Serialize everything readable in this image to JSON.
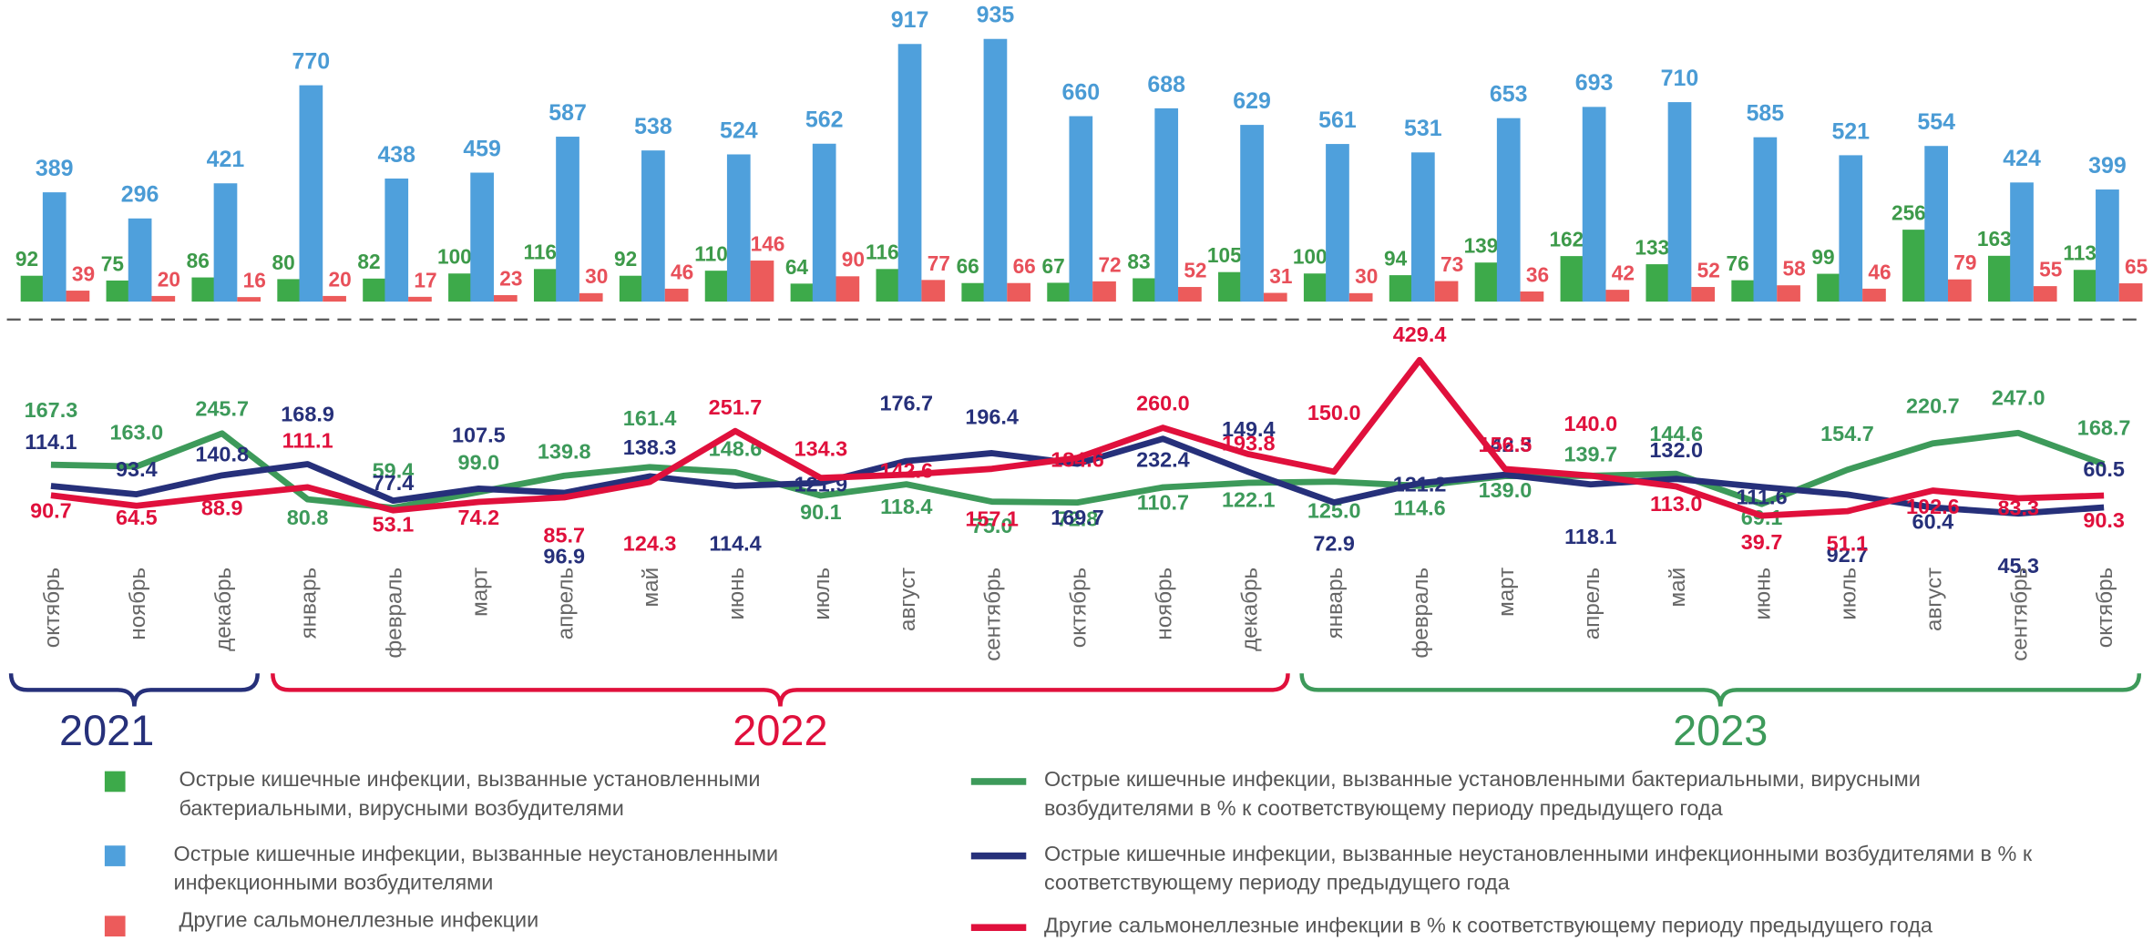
{
  "chart_data": {
    "type": "bar",
    "categories": [
      "октябрь",
      "ноябрь",
      "декабрь",
      "январь",
      "февраль",
      "март",
      "апрель",
      "май",
      "июнь",
      "июль",
      "август",
      "сентябрь",
      "октябрь",
      "ноябрь",
      "декабрь",
      "январь",
      "февраль",
      "март",
      "апрель",
      "май",
      "июнь",
      "июль",
      "август",
      "сентябрь",
      "октябрь"
    ],
    "year_labels": [
      "2021",
      "2022",
      "2023"
    ],
    "year_colors": [
      "#26307a",
      "#e0103c",
      "#3d9a5a"
    ],
    "series": [
      {
        "name": "Острые кишечные инфекции, вызванные установленными бактериальными, вирусными возбудителями",
        "kind": "bar",
        "color": "#3daa4a",
        "label_color": "#3d9a4a",
        "values": [
          92,
          75,
          86,
          80,
          82,
          100,
          116,
          92,
          110,
          64,
          116,
          66,
          67,
          83,
          105,
          100,
          94,
          139,
          162,
          133,
          76,
          99,
          256,
          163,
          113
        ]
      },
      {
        "name": "Острые кишечные инфекции, вызванные неустановленными инфекционными возбудителями",
        "kind": "bar",
        "color": "#4fa0dc",
        "label_color": "#4a9bd5",
        "values": [
          389,
          296,
          421,
          770,
          438,
          459,
          587,
          538,
          524,
          562,
          917,
          935,
          660,
          688,
          629,
          561,
          531,
          653,
          693,
          710,
          585,
          521,
          554,
          424,
          399
        ]
      },
      {
        "name": "Другие сальмонеллезные инфекции",
        "kind": "bar",
        "color": "#ec5b5b",
        "label_color": "#e8505a",
        "values": [
          39,
          20,
          16,
          20,
          17,
          23,
          30,
          46,
          146,
          90,
          77,
          66,
          72,
          52,
          31,
          30,
          73,
          36,
          42,
          52,
          58,
          46,
          79,
          55,
          65
        ]
      },
      {
        "name": "Острые кишечные инфекции, вызванные установленными бактериальными, вирусными возбудителями в % к соответствующему периоду предыдущего года",
        "kind": "line",
        "color": "#3d9a5a",
        "label_color": "#3d9a5a",
        "values": [
          167.3,
          163.0,
          245.7,
          80.8,
          59.4,
          99.0,
          139.8,
          161.4,
          148.6,
          90.1,
          118.4,
          75.0,
          72.8,
          110.7,
          122.1,
          125.0,
          114.6,
          139.0,
          139.7,
          144.6,
          69.1,
          154.7,
          220.7,
          247.0,
          168.7
        ],
        "value_labels": [
          "167.3",
          "163.0",
          "245.7",
          "80.8",
          "59.4",
          "99.0",
          "139.8",
          "161.4",
          "148.6",
          "90.1",
          "118.4",
          "75.0",
          "72.8",
          "110.7",
          "122.1",
          "125.0",
          "114.6",
          "139.0",
          "139.7",
          "144.6",
          "69.1",
          "154.7",
          "220.7",
          "247.0",
          "168.7"
        ]
      },
      {
        "name": "Острые кишечные инфекции, вызванные неустановленными инфекционными возбудителями в % к соответствующему периоду предыдущего года",
        "kind": "line",
        "color": "#26307a",
        "label_color": "#26307a",
        "values": [
          114.1,
          93.4,
          140.8,
          168.9,
          77.4,
          107.5,
          96.9,
          138.3,
          114.4,
          121.9,
          176.7,
          196.4,
          169.7,
          232.4,
          149.4,
          72.9,
          121.2,
          142.3,
          118.1,
          132.0,
          111.6,
          92.7,
          60.4,
          45.3,
          60.5
        ],
        "value_labels": [
          "114.1",
          "93.4",
          "140.8",
          "168.9",
          "77.4",
          "107.5",
          "96.9",
          "138.3",
          "114.4",
          "121.9",
          "176.7",
          "196.4",
          "169.7",
          "232.4",
          "149.4",
          "72.9",
          "121.2",
          "142.3",
          "118.1",
          "132.0",
          "111.6",
          "92.7",
          "60.4",
          "45.3",
          "60.5"
        ]
      },
      {
        "name": "Другие сальмонеллезные инфекции в % к соответствующему периоду предыдущего года",
        "kind": "line",
        "color": "#e0103c",
        "label_color": "#e0103c",
        "values": [
          90.7,
          64.5,
          88.9,
          111.1,
          53.1,
          74.2,
          85.7,
          124.3,
          251.7,
          134.3,
          142.6,
          157.1,
          184.6,
          260.0,
          193.8,
          150.0,
          429.4,
          156.5,
          140.0,
          113.0,
          39.7,
          51.1,
          102.6,
          83.3,
          90.3
        ],
        "value_labels": [
          "90.7",
          "64.5",
          "88.9",
          "111.1",
          "53.1",
          "74.2",
          "85.7",
          "124.3",
          "251.7",
          "134.3",
          "142.6",
          "157.1",
          "184.6",
          "260.0",
          "193.8",
          "150.0",
          "429.4",
          "156.5",
          "140.0",
          "113.0",
          "39.7",
          "51.1",
          "102.6",
          "83.3",
          "90.3"
        ]
      }
    ]
  }
}
